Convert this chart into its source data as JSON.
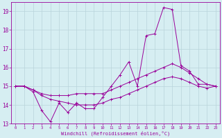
{
  "x": [
    0,
    1,
    2,
    3,
    4,
    5,
    6,
    7,
    8,
    9,
    10,
    11,
    12,
    13,
    14,
    15,
    16,
    17,
    18,
    19,
    20,
    21,
    22,
    23
  ],
  "line1": [
    15.0,
    15.0,
    14.7,
    13.7,
    13.1,
    14.1,
    13.6,
    14.1,
    13.8,
    13.8,
    14.4,
    15.0,
    15.6,
    16.3,
    15.0,
    17.7,
    17.8,
    19.2,
    19.1,
    16.1,
    15.8,
    15.1,
    15.1,
    15.0
  ],
  "line2": [
    15.0,
    15.0,
    14.8,
    14.6,
    14.5,
    14.5,
    14.5,
    14.6,
    14.6,
    14.6,
    14.6,
    14.8,
    15.0,
    15.2,
    15.4,
    15.6,
    15.8,
    16.0,
    16.2,
    16.0,
    15.7,
    15.4,
    15.1,
    15.0
  ],
  "line3": [
    15.0,
    15.0,
    14.8,
    14.5,
    14.3,
    14.2,
    14.1,
    14.0,
    14.0,
    14.0,
    14.1,
    14.3,
    14.4,
    14.6,
    14.8,
    15.0,
    15.2,
    15.4,
    15.5,
    15.4,
    15.2,
    15.0,
    14.9,
    15.0
  ],
  "line_color": "#990099",
  "bg_color": "#d6eef2",
  "grid_color": "#b8d4da",
  "xlabel": "Windchill (Refroidissement éolien,°C)",
  "ylim": [
    13.0,
    19.5
  ],
  "xlim": [
    -0.5,
    23.5
  ],
  "yticks": [
    13,
    14,
    15,
    16,
    17,
    18,
    19
  ],
  "xticks": [
    0,
    1,
    2,
    3,
    4,
    5,
    6,
    7,
    8,
    9,
    10,
    11,
    12,
    13,
    14,
    15,
    16,
    17,
    18,
    19,
    20,
    21,
    22,
    23
  ],
  "figsize": [
    3.2,
    2.0
  ],
  "dpi": 100
}
